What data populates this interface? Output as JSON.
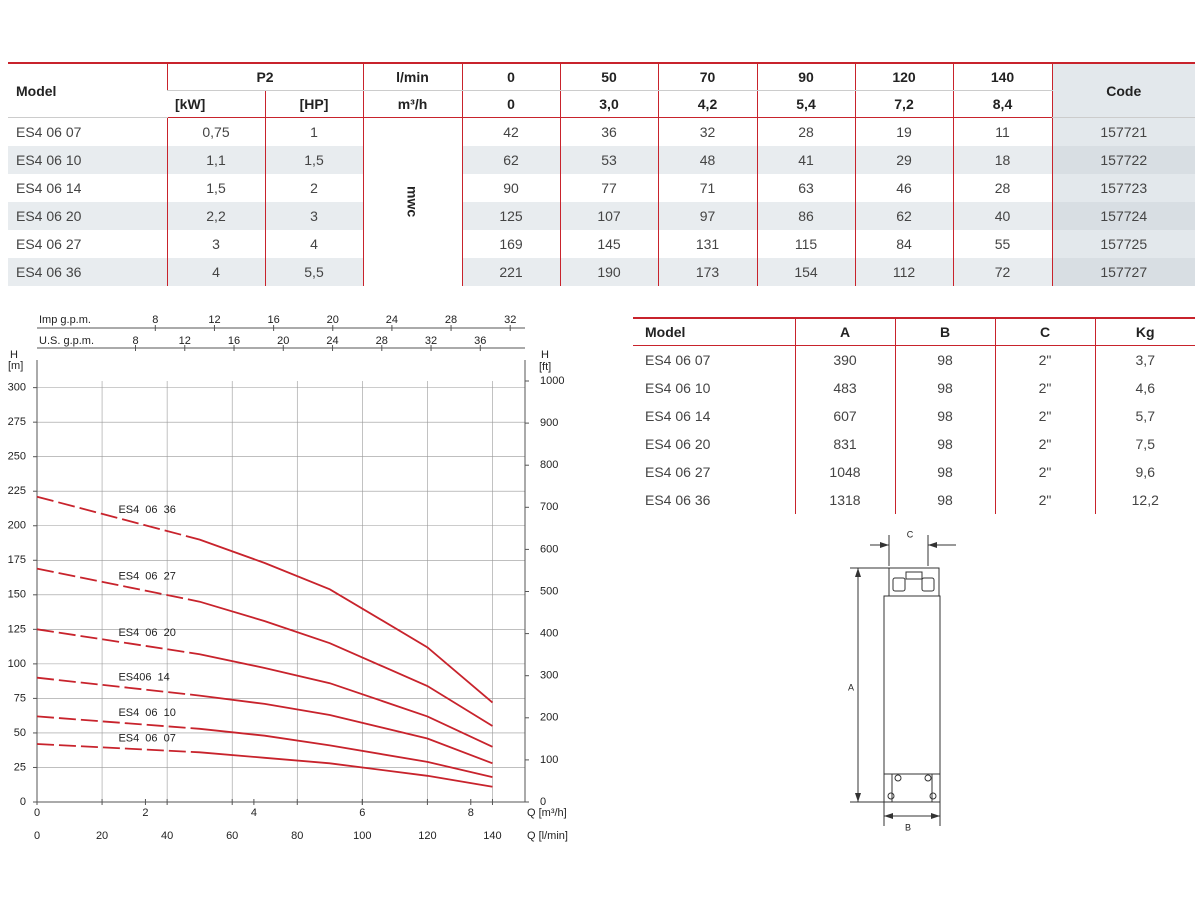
{
  "spec_table": {
    "header": {
      "model": "Model",
      "p2": "P2",
      "kw": "[kW]",
      "hp": "[HP]",
      "flow_lmin": "l/min",
      "flow_m3h": "m³/h",
      "code": "Code",
      "lmin": [
        0,
        50,
        70,
        90,
        120,
        140
      ],
      "m3h": [
        "0",
        "3,0",
        "4,2",
        "5,4",
        "7,2",
        "8,4"
      ]
    },
    "unit": "mwc",
    "rows": [
      {
        "model": "ES4 06 07",
        "kw": "0,75",
        "hp": "1",
        "heads": [
          42,
          36,
          32,
          28,
          19,
          11
        ],
        "code": "157721"
      },
      {
        "model": "ES4 06 10",
        "kw": "1,1",
        "hp": "1,5",
        "heads": [
          62,
          53,
          48,
          41,
          29,
          18
        ],
        "code": "157722"
      },
      {
        "model": "ES4 06 14",
        "kw": "1,5",
        "hp": "2",
        "heads": [
          90,
          77,
          71,
          63,
          46,
          28
        ],
        "code": "157723"
      },
      {
        "model": "ES4 06 20",
        "kw": "2,2",
        "hp": "3",
        "heads": [
          125,
          107,
          97,
          86,
          62,
          40
        ],
        "code": "157724"
      },
      {
        "model": "ES4 06 27",
        "kw": "3",
        "hp": "4",
        "heads": [
          169,
          145,
          131,
          115,
          84,
          55
        ],
        "code": "157725"
      },
      {
        "model": "ES4 06 36",
        "kw": "4",
        "hp": "5,5",
        "heads": [
          221,
          190,
          173,
          154,
          112,
          72
        ],
        "code": "157727"
      }
    ]
  },
  "chart_data": {
    "type": "line",
    "xlabel": "Q [l/min]",
    "x2label": "Q [m³/h]",
    "x3label": "Imp g.p.m.",
    "x4label": "U.S. g.p.m.",
    "ylabel": "H",
    "yunit": "[m]",
    "y2label": "H",
    "y2unit": "[ft]",
    "x": [
      0,
      50,
      70,
      90,
      120,
      140
    ],
    "xlim": [
      0,
      150
    ],
    "xticks": [
      0,
      20,
      40,
      60,
      80,
      100,
      120,
      140
    ],
    "x2lim": [
      0,
      9
    ],
    "x2ticks": [
      0,
      2,
      4,
      6,
      8
    ],
    "x3lim": [
      0,
      33
    ],
    "x3ticks": [
      8,
      12,
      16,
      20,
      24,
      28,
      32
    ],
    "x4lim": [
      0,
      39.63
    ],
    "x4ticks": [
      8,
      12,
      16,
      20,
      24,
      28,
      32,
      36
    ],
    "ylim": [
      0,
      304.8
    ],
    "yticks": [
      0,
      25,
      50,
      75,
      100,
      125,
      150,
      175,
      200,
      225,
      250,
      275,
      300
    ],
    "y2lim": [
      0,
      1000
    ],
    "y2ticks": [
      0,
      100,
      200,
      300,
      400,
      500,
      600,
      700,
      800,
      900,
      1000
    ],
    "grid": true,
    "series": [
      {
        "name": "ES4 06 07",
        "color": "#c8232c",
        "values": [
          42,
          36,
          32,
          28,
          19,
          11
        ]
      },
      {
        "name": "ES4 06 10",
        "color": "#c8232c",
        "values": [
          62,
          53,
          48,
          41,
          29,
          18
        ]
      },
      {
        "name": "ES406 14",
        "color": "#c8232c",
        "values": [
          90,
          77,
          71,
          63,
          46,
          28
        ]
      },
      {
        "name": "ES4 06 20",
        "color": "#c8232c",
        "values": [
          125,
          107,
          97,
          86,
          62,
          40
        ]
      },
      {
        "name": "ES4 06 27",
        "color": "#c8232c",
        "values": [
          169,
          145,
          131,
          115,
          84,
          55
        ]
      },
      {
        "name": "ES4 06 36",
        "color": "#c8232c",
        "values": [
          221,
          190,
          173,
          154,
          112,
          72
        ]
      }
    ]
  },
  "dim_table": {
    "columns": [
      "Model",
      "A",
      "B",
      "C",
      "Kg"
    ],
    "rows": [
      [
        "ES4 06 07",
        390,
        98,
        "2\"",
        "3,7"
      ],
      [
        "ES4 06 10",
        483,
        98,
        "2\"",
        "4,6"
      ],
      [
        "ES4 06 14",
        607,
        98,
        "2\"",
        "5,7"
      ],
      [
        "ES4 06 20",
        831,
        98,
        "2\"",
        "7,5"
      ],
      [
        "ES4 06 27",
        1048,
        98,
        "2\"",
        "9,6"
      ],
      [
        "ES4 06 36",
        1318,
        98,
        "2\"",
        "12,2"
      ]
    ]
  },
  "diagram": {
    "labels": {
      "a": "A",
      "b": "B",
      "c": "C"
    }
  }
}
